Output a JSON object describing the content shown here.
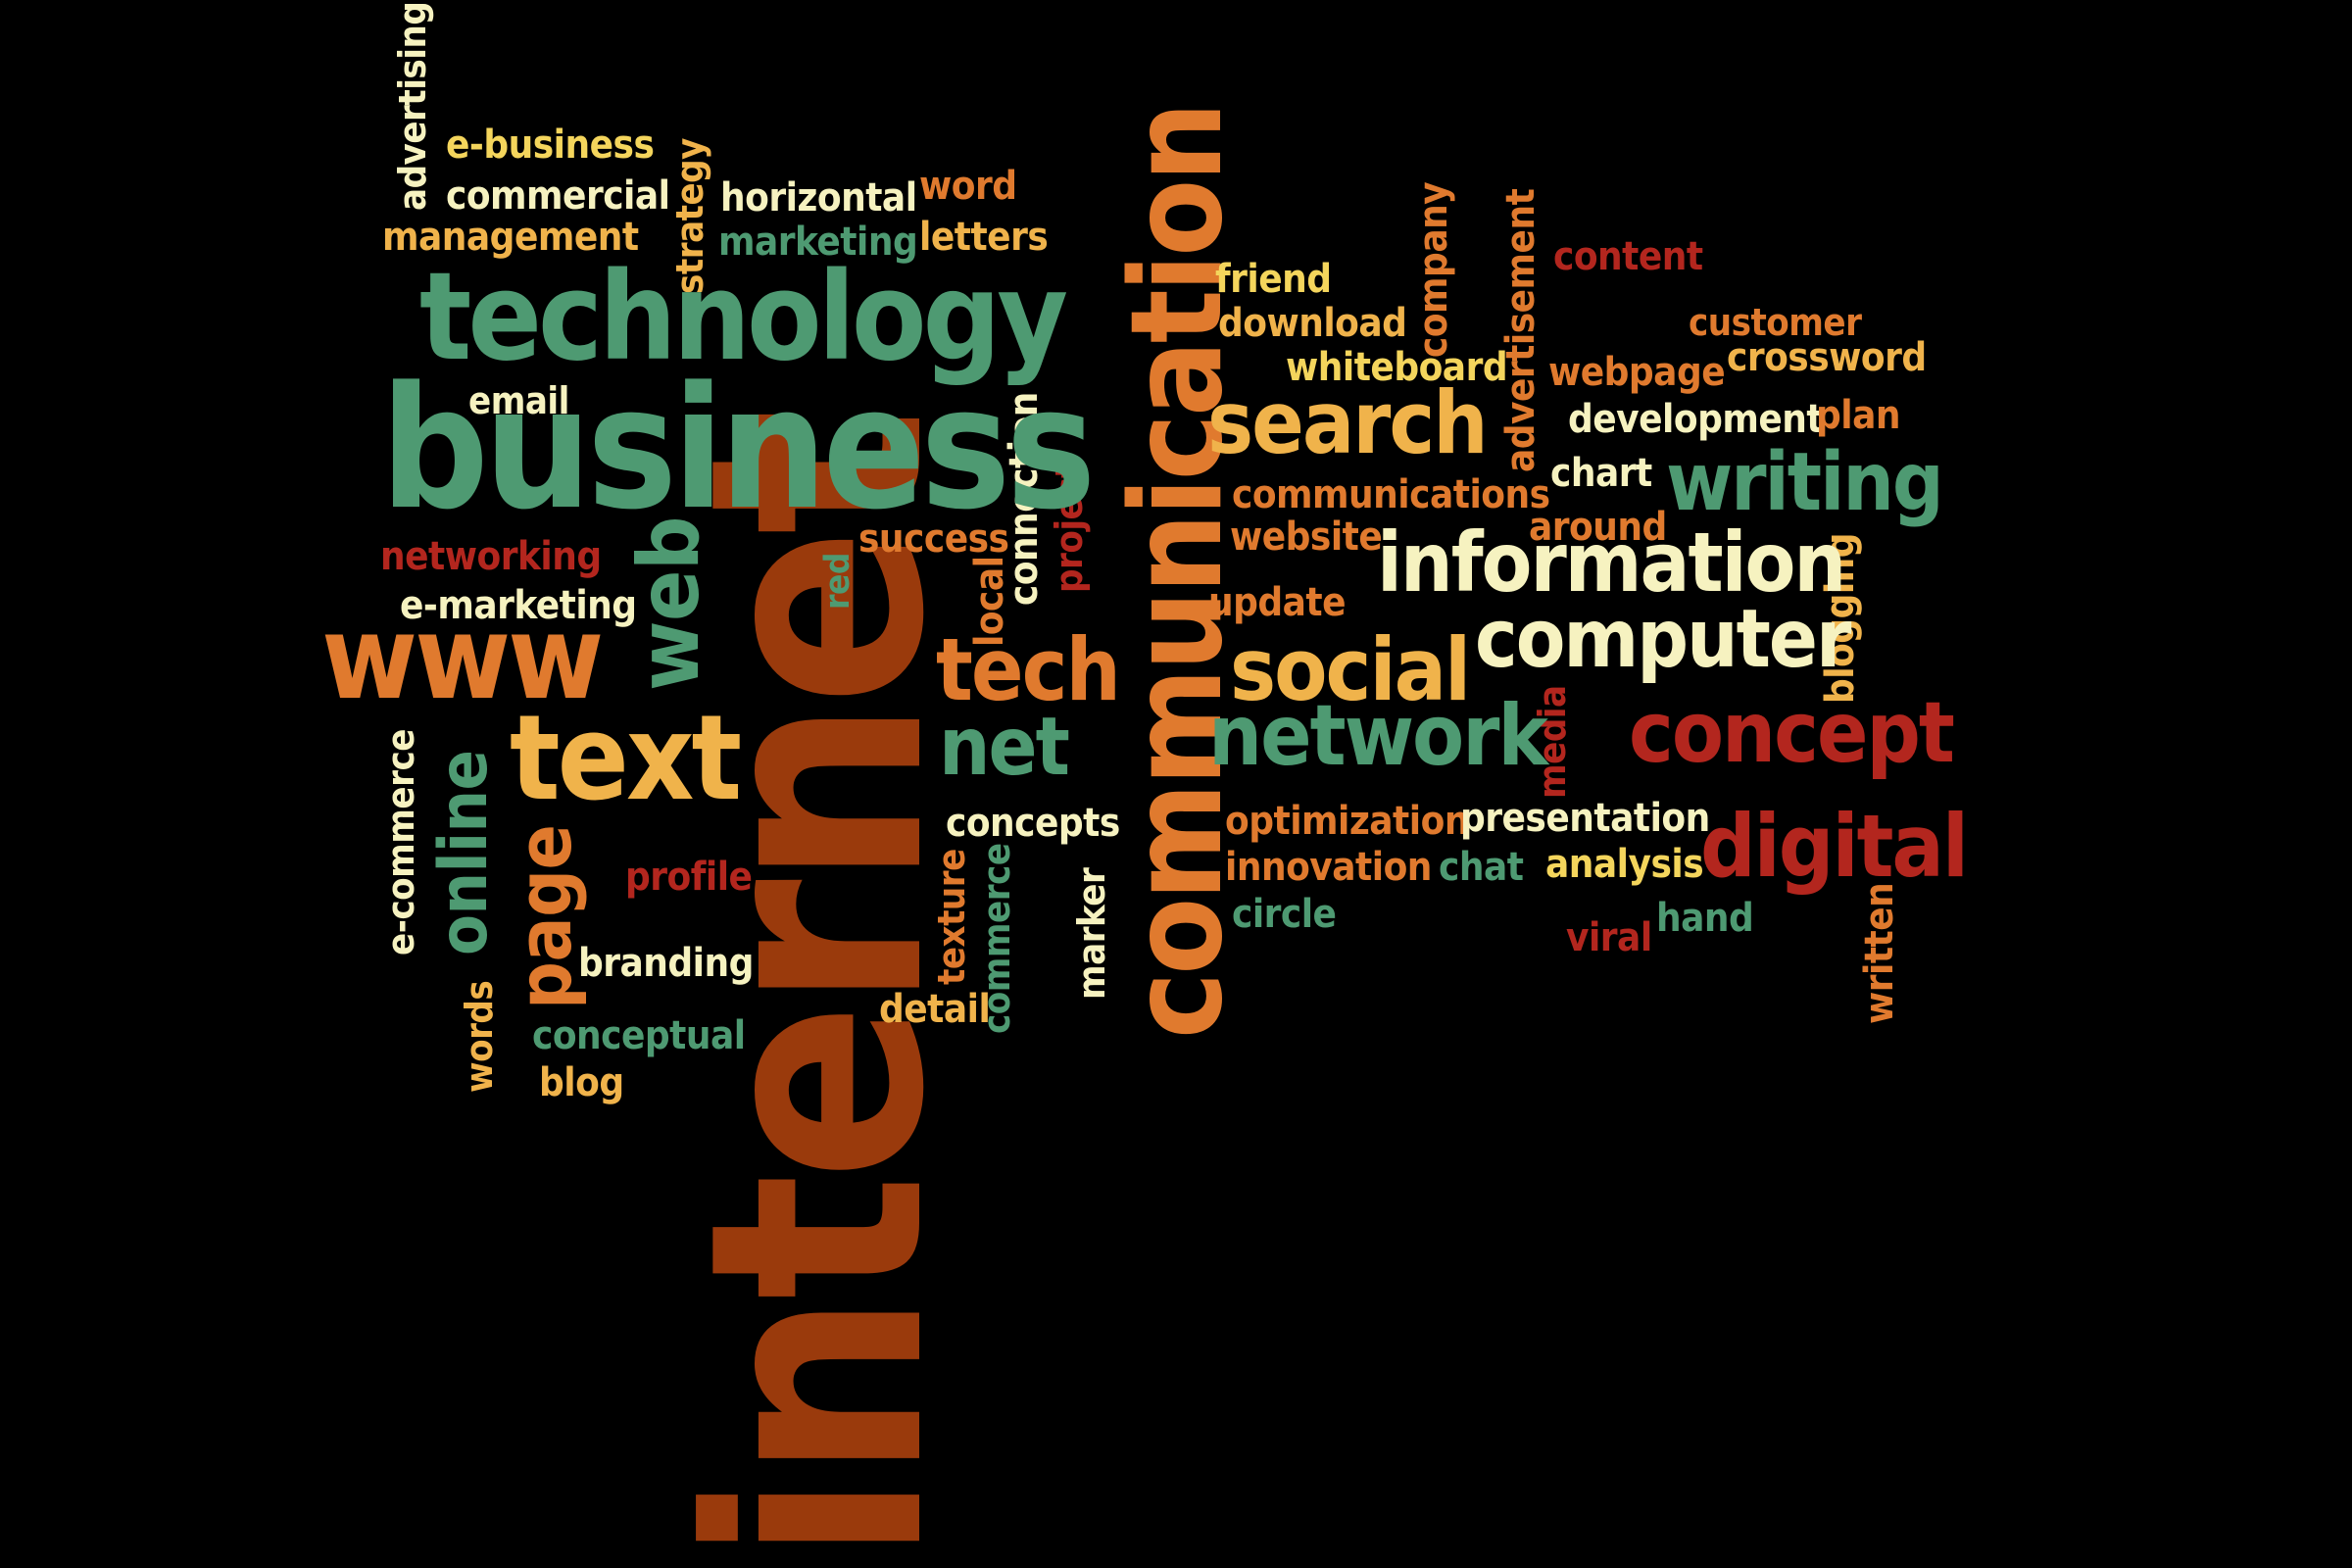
{
  "palette": {
    "cream": "#f6f2c0",
    "yellow": "#f4d55c",
    "gold": "#f0b34b",
    "orange": "#e07a2e",
    "teal": "#4e9a72",
    "rust": "#9a3a0c",
    "red": "#b3261e"
  },
  "words": [
    {
      "id": "internet",
      "text": "internet",
      "color": "rust"
    },
    {
      "id": "business",
      "text": "business",
      "color": "teal"
    },
    {
      "id": "technology",
      "text": "technology",
      "color": "teal"
    },
    {
      "id": "communication",
      "text": "communication",
      "color": "orange"
    },
    {
      "id": "information",
      "text": "information",
      "color": "cream"
    },
    {
      "id": "computer",
      "text": "computer",
      "color": "cream"
    },
    {
      "id": "www",
      "text": "www",
      "color": "orange"
    },
    {
      "id": "text",
      "text": "text",
      "color": "gold"
    },
    {
      "id": "search",
      "text": "search",
      "color": "gold"
    },
    {
      "id": "social",
      "text": "social",
      "color": "gold"
    },
    {
      "id": "network",
      "text": "network",
      "color": "teal"
    },
    {
      "id": "concept",
      "text": "concept",
      "color": "red"
    },
    {
      "id": "digital",
      "text": "digital",
      "color": "red"
    },
    {
      "id": "writing",
      "text": "writing",
      "color": "teal"
    },
    {
      "id": "tech",
      "text": "tech",
      "color": "orange"
    },
    {
      "id": "net",
      "text": "net",
      "color": "teal"
    },
    {
      "id": "web",
      "text": "web",
      "color": "teal"
    },
    {
      "id": "online",
      "text": "online",
      "color": "teal"
    },
    {
      "id": "page",
      "text": "page",
      "color": "orange"
    },
    {
      "id": "advertising",
      "text": "advertising",
      "color": "cream"
    },
    {
      "id": "e-business",
      "text": "e-business",
      "color": "yellow"
    },
    {
      "id": "commercial",
      "text": "commercial",
      "color": "cream"
    },
    {
      "id": "management",
      "text": "management",
      "color": "gold"
    },
    {
      "id": "strategy",
      "text": "strategy",
      "color": "gold"
    },
    {
      "id": "horizontal",
      "text": "horizontal",
      "color": "cream"
    },
    {
      "id": "marketing",
      "text": "marketing",
      "color": "teal"
    },
    {
      "id": "word",
      "text": "word",
      "color": "orange"
    },
    {
      "id": "letters",
      "text": "letters",
      "color": "gold"
    },
    {
      "id": "email",
      "text": "email",
      "color": "cream"
    },
    {
      "id": "networking",
      "text": "networking",
      "color": "red"
    },
    {
      "id": "e-marketing",
      "text": "e-marketing",
      "color": "cream"
    },
    {
      "id": "success",
      "text": "success",
      "color": "orange"
    },
    {
      "id": "red",
      "text": "red",
      "color": "teal"
    },
    {
      "id": "local",
      "text": "local",
      "color": "orange"
    },
    {
      "id": "connection",
      "text": "connection",
      "color": "cream"
    },
    {
      "id": "project",
      "text": "project",
      "color": "red"
    },
    {
      "id": "e-commerce",
      "text": "e-commerce",
      "color": "cream"
    },
    {
      "id": "profile",
      "text": "profile",
      "color": "red"
    },
    {
      "id": "branding",
      "text": "branding",
      "color": "cream"
    },
    {
      "id": "words",
      "text": "words",
      "color": "gold"
    },
    {
      "id": "conceptual",
      "text": "conceptual",
      "color": "teal"
    },
    {
      "id": "blog",
      "text": "blog",
      "color": "gold"
    },
    {
      "id": "concepts",
      "text": "concepts",
      "color": "cream"
    },
    {
      "id": "texture",
      "text": "texture",
      "color": "orange"
    },
    {
      "id": "commerce",
      "text": "commerce",
      "color": "teal"
    },
    {
      "id": "detail",
      "text": "detail",
      "color": "gold"
    },
    {
      "id": "marker",
      "text": "marker",
      "color": "cream"
    },
    {
      "id": "friend",
      "text": "friend",
      "color": "yellow"
    },
    {
      "id": "download",
      "text": "download",
      "color": "gold"
    },
    {
      "id": "whiteboard",
      "text": "whiteboard",
      "color": "yellow"
    },
    {
      "id": "company",
      "text": "company",
      "color": "orange"
    },
    {
      "id": "advertisement",
      "text": "advertisement",
      "color": "orange"
    },
    {
      "id": "content",
      "text": "content",
      "color": "red"
    },
    {
      "id": "customer",
      "text": "customer",
      "color": "orange"
    },
    {
      "id": "webpage",
      "text": "webpage",
      "color": "orange"
    },
    {
      "id": "crossword",
      "text": "crossword",
      "color": "gold"
    },
    {
      "id": "development",
      "text": "development",
      "color": "cream"
    },
    {
      "id": "plan",
      "text": "plan",
      "color": "orange"
    },
    {
      "id": "chart",
      "text": "chart",
      "color": "cream"
    },
    {
      "id": "communications",
      "text": "communications",
      "color": "orange"
    },
    {
      "id": "website",
      "text": "website",
      "color": "orange"
    },
    {
      "id": "around",
      "text": "around",
      "color": "orange"
    },
    {
      "id": "update",
      "text": "update",
      "color": "orange"
    },
    {
      "id": "blogging",
      "text": "blogging",
      "color": "gold"
    },
    {
      "id": "media",
      "text": "media",
      "color": "red"
    },
    {
      "id": "optimization",
      "text": "optimization",
      "color": "orange"
    },
    {
      "id": "presentation",
      "text": "presentation",
      "color": "cream"
    },
    {
      "id": "innovation",
      "text": "innovation",
      "color": "orange"
    },
    {
      "id": "chat",
      "text": "chat",
      "color": "teal"
    },
    {
      "id": "analysis",
      "text": "analysis",
      "color": "yellow"
    },
    {
      "id": "circle",
      "text": "circle",
      "color": "teal"
    },
    {
      "id": "viral",
      "text": "viral",
      "color": "red"
    },
    {
      "id": "hand",
      "text": "hand",
      "color": "teal"
    },
    {
      "id": "written",
      "text": "written",
      "color": "orange"
    }
  ]
}
